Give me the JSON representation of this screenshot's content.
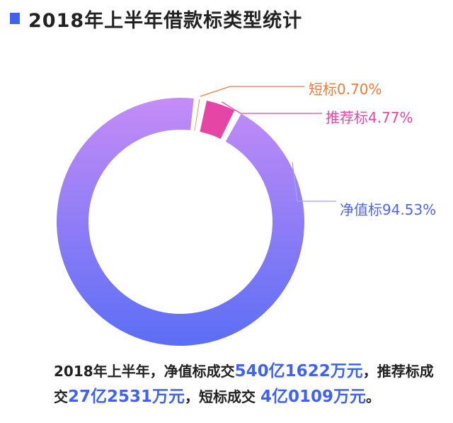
{
  "title": "2018年上半年借款标类型统计",
  "colors": {
    "accent": "#3f63f0",
    "gradient_top": "#c58cf7",
    "gradient_bottom": "#5b6ef5",
    "short_label": "#f07a3a",
    "recommend_label": "#e645a6",
    "net_label": "#4f65f0"
  },
  "chart_data": {
    "type": "pie",
    "style": "donut",
    "title": "2018年上半年借款标类型统计",
    "slices": [
      {
        "name": "短标",
        "percent_text": "0.70%",
        "value": 0.7,
        "color": "#f07a3a"
      },
      {
        "name": "推荐标",
        "percent_text": "4.77%",
        "value": 4.77,
        "color": "#e645a6"
      },
      {
        "name": "净值标",
        "percent_text": "94.53%",
        "value": 94.53,
        "color": "gradient"
      }
    ]
  },
  "summary": {
    "p1": "2018年上半年，净值标成交",
    "v1": "540亿1622万元",
    "p2": "，推荐标成交",
    "v2": "27亿2531万元",
    "p3": "，短标成交 ",
    "v3": "4亿0109万元",
    "p4": "。"
  }
}
